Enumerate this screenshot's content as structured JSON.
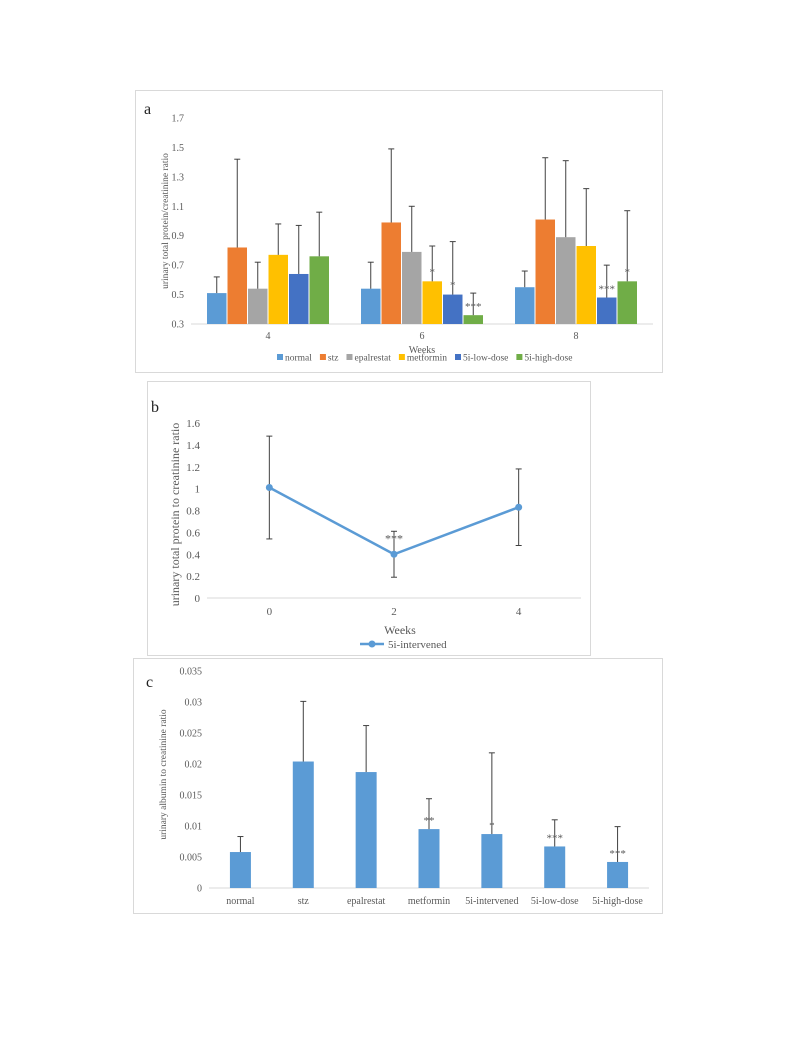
{
  "colors": {
    "normal": "#5b9bd5",
    "stz": "#ed7d31",
    "epalrestat": "#a5a5a5",
    "metformin": "#ffc000",
    "low": "#4472c4",
    "high": "#70ad47",
    "line": "#5b9bd5",
    "barC": "#5b9bd5",
    "error": "#404040",
    "grid": "#d9d9d9"
  },
  "panels": {
    "a": {
      "letter": "a"
    },
    "b": {
      "letter": "b"
    },
    "c": {
      "letter": "c"
    }
  },
  "chart_data": [
    {
      "id": "a",
      "type": "bar",
      "categories": [
        "4",
        "6",
        "8"
      ],
      "xlabel": "Weeks",
      "ylabel": "urinary total protein/creatinine ratio",
      "ylim": [
        0.3,
        1.7
      ],
      "yticks": [
        "0.3",
        "0.5",
        "0.7",
        "0.9",
        "1.1",
        "1.3",
        "1.5",
        "1.7"
      ],
      "legend_position": "bottom",
      "series": [
        {
          "name": "normal",
          "color": "#5b9bd5",
          "values": [
            0.51,
            0.54,
            0.55
          ],
          "error": [
            0.11,
            0.18,
            0.11
          ],
          "labels": [
            "",
            "",
            ""
          ]
        },
        {
          "name": "stz",
          "color": "#ed7d31",
          "values": [
            0.82,
            0.99,
            1.01
          ],
          "error": [
            0.6,
            0.5,
            0.42
          ],
          "labels": [
            "",
            "",
            ""
          ]
        },
        {
          "name": "epalrestat",
          "color": "#a5a5a5",
          "values": [
            0.54,
            0.79,
            0.89
          ],
          "error": [
            0.18,
            0.31,
            0.52
          ],
          "labels": [
            "",
            "",
            ""
          ]
        },
        {
          "name": "metformin",
          "color": "#ffc000",
          "values": [
            0.77,
            0.59,
            0.83
          ],
          "error": [
            0.21,
            0.24,
            0.39
          ],
          "labels": [
            "",
            "*",
            ""
          ]
        },
        {
          "name": "5i-low-dose",
          "color": "#4472c4",
          "values": [
            0.64,
            0.5,
            0.48
          ],
          "error": [
            0.33,
            0.36,
            0.22
          ],
          "labels": [
            "",
            "*",
            "***"
          ]
        },
        {
          "name": "5i-high-dose",
          "color": "#70ad47",
          "values": [
            0.76,
            0.36,
            0.59
          ],
          "error": [
            0.3,
            0.15,
            0.48
          ],
          "labels": [
            "",
            "***",
            "*"
          ]
        }
      ]
    },
    {
      "id": "b",
      "type": "line",
      "x": [
        "0",
        "2",
        "4"
      ],
      "xlabel": "Weeks",
      "ylabel": "urinary total protein to creatinine ratio",
      "ylim": [
        0,
        1.6
      ],
      "yticks": [
        "0",
        "0.2",
        "0.4",
        "0.6",
        "0.8",
        "1",
        "1.2",
        "1.4",
        "1.6"
      ],
      "legend_position": "bottom",
      "series": [
        {
          "name": "5i-intervened",
          "color": "#5b9bd5",
          "values": [
            1.01,
            0.4,
            0.83
          ],
          "error": [
            0.47,
            0.21,
            0.35
          ],
          "labels": [
            "",
            "***",
            ""
          ]
        }
      ]
    },
    {
      "id": "c",
      "type": "bar",
      "categories": [
        "normal",
        "stz",
        "epalrestat",
        "metformin",
        "5i-intervened",
        "5i-low-dose",
        "5i-high-dose"
      ],
      "ylabel": "urinary albumin to creatinine ratio",
      "ylim": [
        0,
        0.035
      ],
      "yticks": [
        "0",
        "0.005",
        "0.01",
        "0.015",
        "0.02",
        "0.025",
        "0.03",
        "0.035"
      ],
      "series": [
        {
          "color": "#5b9bd5",
          "values": [
            0.0058,
            0.0204,
            0.0187,
            0.0095,
            0.0087,
            0.0067,
            0.0042
          ],
          "error": [
            0.0025,
            0.0097,
            0.0075,
            0.0049,
            0.0131,
            0.0043,
            0.0057
          ],
          "labels": [
            "",
            "",
            "",
            "**",
            "*",
            "***",
            "***"
          ]
        }
      ]
    }
  ]
}
